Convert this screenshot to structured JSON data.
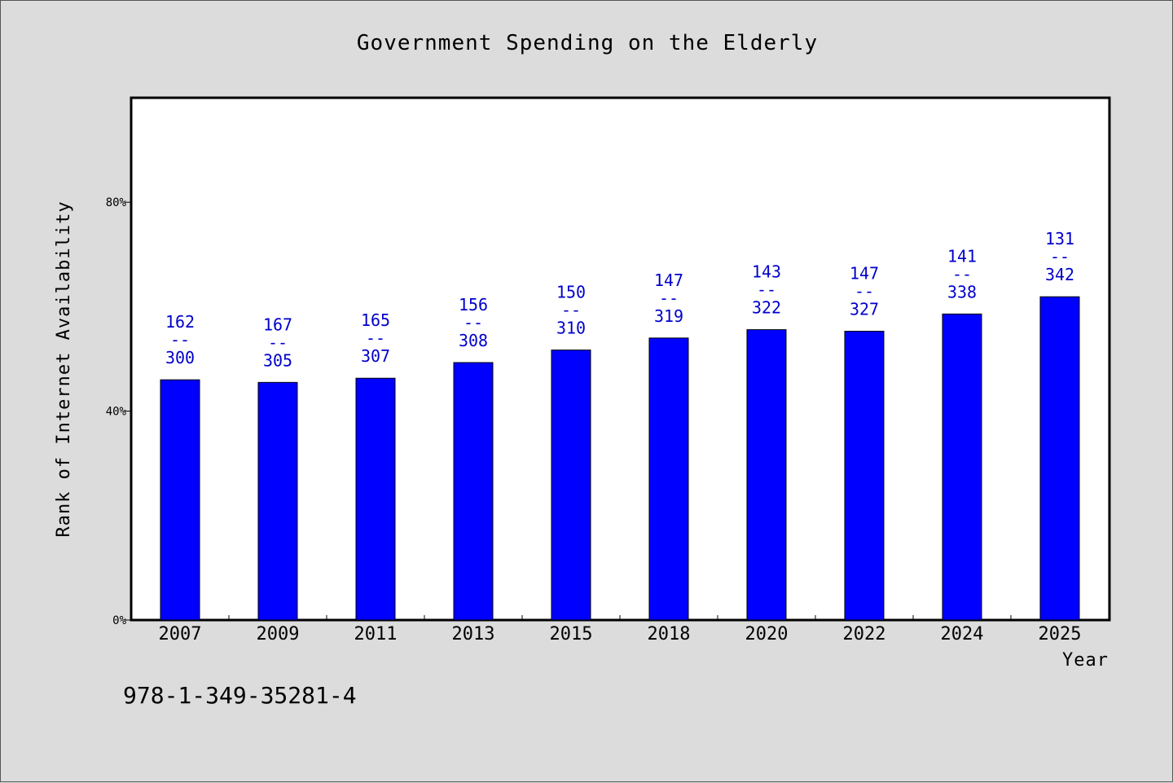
{
  "chart_data": {
    "type": "bar",
    "title": "Government Spending on the Elderly",
    "xlabel": "Year",
    "ylabel": "Rank of Internet Availability",
    "categories": [
      "2007",
      "2009",
      "2011",
      "2013",
      "2015",
      "2018",
      "2020",
      "2022",
      "2024",
      "2025"
    ],
    "values": [
      0.46,
      0.455,
      0.463,
      0.493,
      0.517,
      0.54,
      0.556,
      0.553,
      0.586,
      0.619
    ],
    "data_labels": [
      [
        "162",
        "--",
        "300"
      ],
      [
        "167",
        "--",
        "305"
      ],
      [
        "165",
        "--",
        "307"
      ],
      [
        "156",
        "--",
        "308"
      ],
      [
        "150",
        "--",
        "310"
      ],
      [
        "147",
        "--",
        "319"
      ],
      [
        "143",
        "--",
        "322"
      ],
      [
        "147",
        "--",
        "327"
      ],
      [
        "141",
        "--",
        "338"
      ],
      [
        "131",
        "--",
        "342"
      ]
    ],
    "ylim": [
      0,
      1.0
    ],
    "yticks": [
      0,
      0.4,
      0.8
    ],
    "ytick_labels": [
      "0%",
      "40%",
      "80%"
    ],
    "grid": false,
    "bar_color": "#0000ff",
    "label_color": "#0000cc"
  },
  "footer_text": "978-1-349-35281-4"
}
